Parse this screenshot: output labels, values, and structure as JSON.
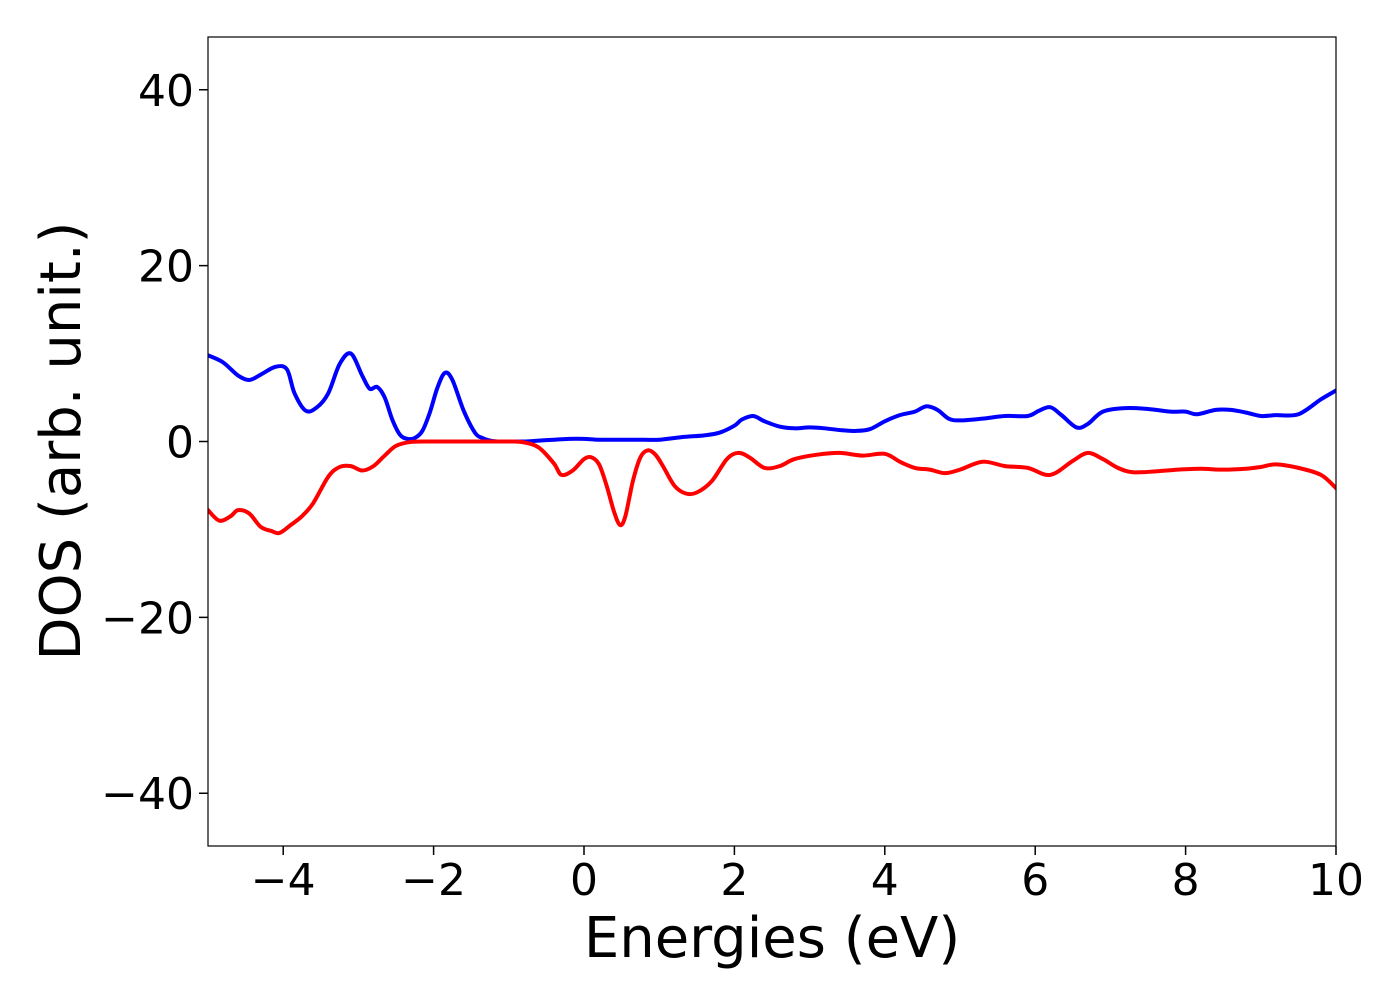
{
  "chart_data": {
    "type": "line",
    "title": "",
    "xlabel": "Energies (eV)",
    "ylabel": "DOS (arb. unit.)",
    "xlim": [
      -5,
      10
    ],
    "ylim": [
      -46,
      46
    ],
    "xticks": [
      -4,
      -2,
      0,
      2,
      4,
      6,
      8,
      10
    ],
    "xtick_labels": [
      "−4",
      "−2",
      "0",
      "2",
      "4",
      "6",
      "8",
      "10"
    ],
    "yticks": [
      -40,
      -20,
      0,
      20,
      40
    ],
    "ytick_labels": [
      "−40",
      "−20",
      "0",
      "20",
      "40"
    ],
    "grid": false,
    "legend": "none",
    "series": [
      {
        "color": "#0000ff",
        "x": [
          -5.0,
          -4.8,
          -4.6,
          -4.45,
          -4.3,
          -4.1,
          -3.95,
          -3.85,
          -3.7,
          -3.55,
          -3.4,
          -3.25,
          -3.1,
          -2.95,
          -2.85,
          -2.75,
          -2.65,
          -2.55,
          -2.45,
          -2.35,
          -2.25,
          -2.15,
          -2.05,
          -1.95,
          -1.85,
          -1.75,
          -1.6,
          -1.45,
          -1.35,
          -1.25,
          -1.15,
          -1.05,
          -0.95,
          -0.8,
          -0.6,
          -0.4,
          -0.2,
          0.0,
          0.2,
          0.5,
          0.8,
          1.0,
          1.3,
          1.6,
          1.8,
          2.0,
          2.1,
          2.25,
          2.4,
          2.6,
          2.8,
          3.0,
          3.2,
          3.4,
          3.6,
          3.8,
          4.0,
          4.2,
          4.4,
          4.55,
          4.7,
          4.85,
          5.0,
          5.3,
          5.6,
          5.9,
          6.05,
          6.2,
          6.35,
          6.55,
          6.7,
          6.9,
          7.2,
          7.5,
          7.8,
          8.0,
          8.15,
          8.4,
          8.6,
          8.8,
          9.0,
          9.2,
          9.5,
          9.8,
          10.0
        ],
        "y": [
          9.8,
          9.0,
          7.5,
          7.0,
          7.6,
          8.5,
          8.2,
          5.5,
          3.5,
          3.9,
          5.5,
          8.8,
          10.0,
          7.5,
          6.0,
          6.2,
          5.0,
          2.5,
          0.8,
          0.3,
          0.4,
          1.2,
          3.3,
          6.1,
          7.8,
          7.0,
          3.5,
          1.0,
          0.4,
          0.1,
          0.0,
          0.0,
          0.0,
          0.0,
          0.1,
          0.2,
          0.3,
          0.3,
          0.2,
          0.2,
          0.2,
          0.2,
          0.5,
          0.7,
          1.0,
          1.8,
          2.5,
          2.9,
          2.3,
          1.7,
          1.5,
          1.6,
          1.5,
          1.3,
          1.2,
          1.4,
          2.3,
          3.0,
          3.4,
          4.0,
          3.6,
          2.6,
          2.4,
          2.6,
          2.9,
          2.9,
          3.5,
          3.9,
          3.0,
          1.6,
          2.0,
          3.4,
          3.8,
          3.7,
          3.4,
          3.4,
          3.1,
          3.6,
          3.6,
          3.3,
          2.9,
          3.0,
          3.1,
          4.8,
          5.8
        ]
      },
      {
        "color": "#ff0000",
        "x": [
          -5.0,
          -4.85,
          -4.7,
          -4.6,
          -4.45,
          -4.3,
          -4.15,
          -4.05,
          -3.9,
          -3.75,
          -3.6,
          -3.4,
          -3.25,
          -3.1,
          -2.95,
          -2.8,
          -2.65,
          -2.5,
          -2.3,
          -2.0,
          -1.5,
          -1.0,
          -0.8,
          -0.6,
          -0.4,
          -0.3,
          -0.15,
          0.0,
          0.1,
          0.2,
          0.3,
          0.4,
          0.48,
          0.55,
          0.65,
          0.75,
          0.85,
          0.95,
          1.05,
          1.2,
          1.35,
          1.5,
          1.7,
          1.9,
          2.05,
          2.2,
          2.4,
          2.6,
          2.8,
          3.1,
          3.4,
          3.7,
          4.0,
          4.2,
          4.4,
          4.6,
          4.8,
          5.0,
          5.3,
          5.6,
          5.9,
          6.2,
          6.5,
          6.7,
          6.9,
          7.1,
          7.3,
          7.6,
          7.9,
          8.2,
          8.5,
          8.8,
          9.0,
          9.2,
          9.5,
          9.8,
          10.0
        ],
        "y": [
          -7.8,
          -9.0,
          -8.5,
          -7.8,
          -8.2,
          -9.7,
          -10.2,
          -10.4,
          -9.5,
          -8.5,
          -7.0,
          -4.0,
          -2.9,
          -2.8,
          -3.3,
          -2.8,
          -1.6,
          -0.5,
          -0.05,
          0.0,
          0.0,
          0.0,
          -0.1,
          -0.7,
          -2.5,
          -3.8,
          -3.3,
          -2.0,
          -1.8,
          -2.6,
          -5.0,
          -8.0,
          -9.5,
          -8.5,
          -4.5,
          -1.8,
          -1.0,
          -1.5,
          -2.8,
          -5.0,
          -5.9,
          -5.8,
          -4.5,
          -2.0,
          -1.3,
          -1.8,
          -3.0,
          -2.8,
          -2.0,
          -1.5,
          -1.3,
          -1.6,
          -1.4,
          -2.3,
          -3.0,
          -3.2,
          -3.6,
          -3.2,
          -2.3,
          -2.8,
          -3.0,
          -3.8,
          -2.2,
          -1.3,
          -2.0,
          -3.0,
          -3.5,
          -3.4,
          -3.2,
          -3.1,
          -3.2,
          -3.1,
          -2.9,
          -2.6,
          -3.0,
          -3.8,
          -5.3
        ]
      }
    ]
  }
}
